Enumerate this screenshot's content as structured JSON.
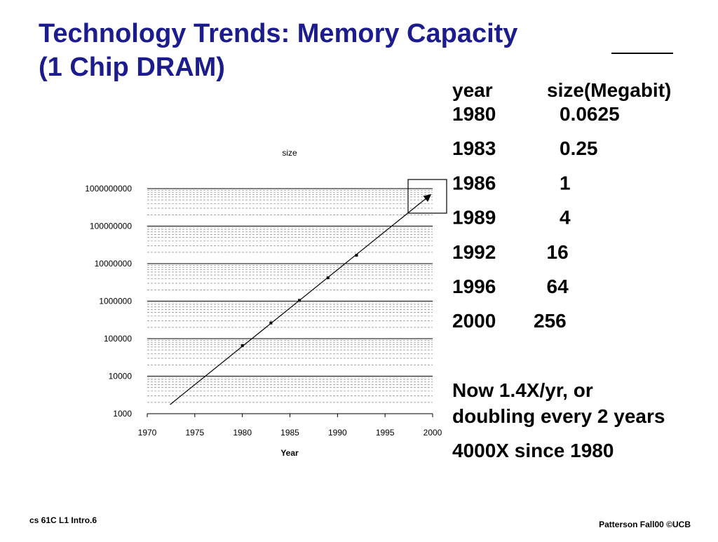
{
  "slide_title": [
    "Technology Trends: Memory Capacity",
    "(1 Chip DRAM)"
  ],
  "chart_data": {
    "type": "line",
    "title": "size",
    "x_label": "Year",
    "x": [
      1980,
      1983,
      1986,
      1989,
      1992
    ],
    "series": [
      {
        "color": "#000000",
        "values": [
          65536,
          262144,
          1048576,
          4194304,
          16777216
        ]
      }
    ],
    "trend": {
      "x": [
        1972.4,
        1999.8
      ],
      "values": [
        1750,
        690000000
      ]
    },
    "xlim": [
      1970,
      2000
    ],
    "xticks": [
      1970,
      1975,
      1980,
      1985,
      1990,
      1995,
      2000
    ],
    "ylim": [
      1000,
      1000000000
    ],
    "yticks": [
      1000,
      10000,
      100000,
      1000000,
      10000000,
      100000000,
      1000000000
    ],
    "log_y": true,
    "grid": true
  },
  "table": {
    "header": [
      "year",
      "size(Megabit)"
    ],
    "rows": [
      [
        1980,
        0.0625
      ],
      [
        1983,
        0.25
      ],
      [
        1986,
        1
      ],
      [
        1989,
        4
      ],
      [
        1992,
        16
      ],
      [
        1996,
        64
      ],
      [
        2000,
        256
      ]
    ]
  },
  "notes": [
    "Now 1.4X/yr, or",
    "doubling every 2 years",
    "4000X since 1980"
  ],
  "footer": {
    "left": "cs 61C  L1 Intro.6",
    "right": "Patterson Fall00  ©UCB"
  }
}
